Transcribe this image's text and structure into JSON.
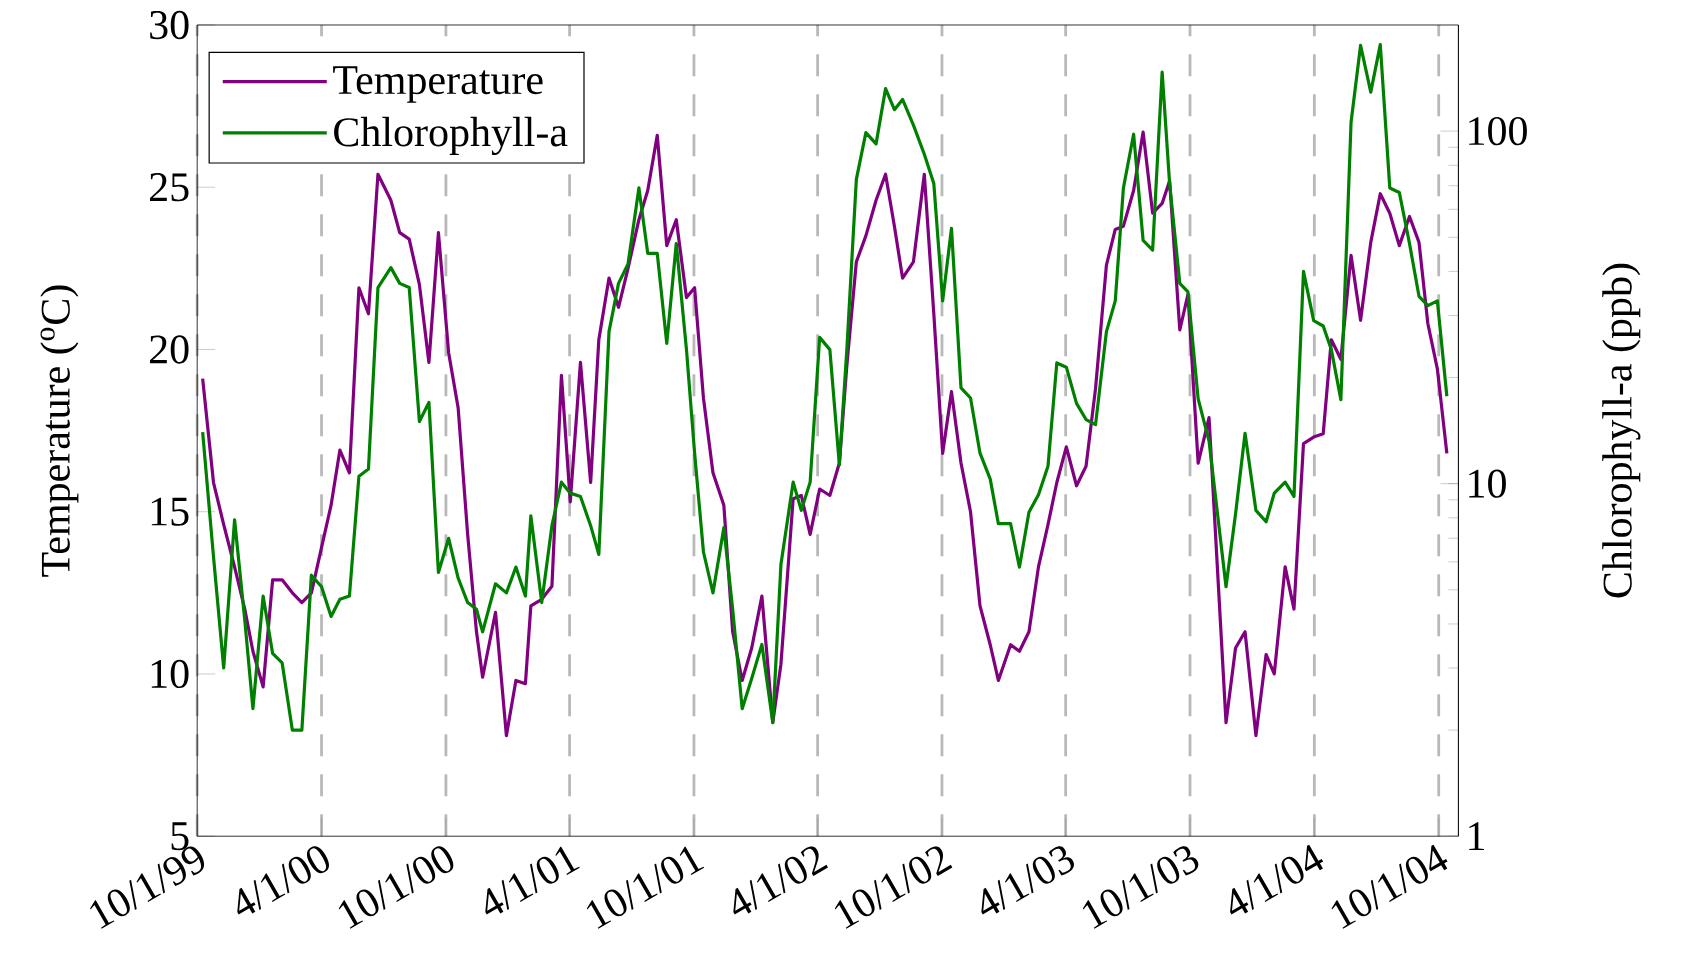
{
  "chart_data": {
    "type": "line",
    "ylabel": "Temperature ($^{o}$C)",
    "y2label": "Chlorophyll-a (ppb)",
    "x": [
      "1999-10-09",
      "1999-10-25",
      "1999-11-09",
      "1999-11-25",
      "1999-12-10",
      "1999-12-22",
      "2000-01-06",
      "2000-01-20",
      "2000-02-03",
      "2000-02-18",
      "2000-03-03",
      "2000-03-17",
      "2000-04-01",
      "2000-04-15",
      "2000-04-28",
      "2000-05-12",
      "2000-05-26",
      "2000-06-09",
      "2000-06-23",
      "2000-07-12",
      "2000-07-25",
      "2000-08-08",
      "2000-08-23",
      "2000-09-06",
      "2000-09-20",
      "2000-10-05",
      "2000-10-19",
      "2000-11-02",
      "2000-11-15",
      "2000-11-24",
      "2000-12-13",
      "2000-12-29",
      "2001-01-12",
      "2001-01-26",
      "2001-02-03",
      "2001-02-19",
      "2001-03-06",
      "2001-03-20",
      "2001-04-02",
      "2001-04-17",
      "2001-05-02",
      "2001-05-14",
      "2001-05-29",
      "2001-06-12",
      "2001-06-26",
      "2001-07-12",
      "2001-07-25",
      "2001-08-08",
      "2001-08-22",
      "2001-09-05",
      "2001-09-20",
      "2001-10-02",
      "2001-10-15",
      "2001-10-29",
      "2001-11-14",
      "2001-11-27",
      "2001-12-11",
      "2001-12-25",
      "2002-01-09",
      "2002-01-25",
      "2002-02-06",
      "2002-02-24",
      "2002-03-08",
      "2002-03-21",
      "2002-04-04",
      "2002-04-19",
      "2002-05-03",
      "2002-05-14",
      "2002-05-28",
      "2002-06-11",
      "2002-06-26",
      "2002-07-10",
      "2002-07-23",
      "2002-08-04",
      "2002-08-20",
      "2002-09-05",
      "2002-09-19",
      "2002-10-02",
      "2002-10-15",
      "2002-10-29",
      "2002-11-12",
      "2002-11-26",
      "2002-12-11",
      "2002-12-23",
      "2003-01-10",
      "2003-01-23",
      "2003-02-06",
      "2003-02-20",
      "2003-03-06",
      "2003-03-19",
      "2003-04-02",
      "2003-04-17",
      "2003-05-01",
      "2003-05-15",
      "2003-05-31",
      "2003-06-13",
      "2003-06-25",
      "2003-07-10",
      "2003-07-24",
      "2003-08-07",
      "2003-08-21",
      "2003-09-01",
      "2003-09-16",
      "2003-09-28",
      "2003-10-13",
      "2003-10-29",
      "2003-11-23",
      "2003-12-07",
      "2003-12-21",
      "2004-01-06",
      "2004-01-21",
      "2004-02-02",
      "2004-02-18",
      "2004-03-02",
      "2004-03-16",
      "2004-03-31",
      "2004-04-14",
      "2004-04-26",
      "2004-05-10",
      "2004-05-25",
      "2004-06-08",
      "2004-06-23",
      "2004-07-07",
      "2004-07-21",
      "2004-08-04",
      "2004-08-19",
      "2004-09-02",
      "2004-09-15",
      "2004-09-29",
      "2004-10-13"
    ],
    "series": [
      {
        "name": "Temperature",
        "color": "#800080",
        "values": [
          19.1,
          15.9,
          14.6,
          13.3,
          12.0,
          10.7,
          9.6,
          12.9,
          12.9,
          12.5,
          12.2,
          12.5,
          13.9,
          15.2,
          16.9,
          16.2,
          21.9,
          21.1,
          25.4,
          24.6,
          23.6,
          23.4,
          22.0,
          19.6,
          23.6,
          19.9,
          18.2,
          14.3,
          11.3,
          9.9,
          11.9,
          8.1,
          9.8,
          9.7,
          12.1,
          12.3,
          12.7,
          19.2,
          15.3,
          19.6,
          15.9,
          20.3,
          22.2,
          21.3,
          22.5,
          24.0,
          24.9,
          26.6,
          23.2,
          24.0,
          21.6,
          21.9,
          18.5,
          16.2,
          15.2,
          11.3,
          9.8,
          10.8,
          12.4,
          8.5,
          10.3,
          15.4,
          15.5,
          14.3,
          15.7,
          15.5,
          16.5,
          19.5,
          22.7,
          23.5,
          24.6,
          25.4,
          23.8,
          22.2,
          22.7,
          25.4,
          21.1,
          16.8,
          18.7,
          16.5,
          15.0,
          12.1,
          10.9,
          9.8,
          10.9,
          10.7,
          11.3,
          13.3,
          14.6,
          15.9,
          17.0,
          15.8,
          16.4,
          18.8,
          22.6,
          23.7,
          23.8,
          24.9,
          26.7,
          24.2,
          24.5,
          25.2,
          20.6,
          21.7,
          16.5,
          17.9,
          8.5,
          10.8,
          11.3,
          8.1,
          10.6,
          10.0,
          13.3,
          12.0,
          17.1,
          17.3,
          17.4,
          20.3,
          19.7,
          22.9,
          20.9,
          23.3,
          24.8,
          24.2,
          23.2,
          24.1,
          23.3,
          20.8,
          19.4,
          16.8
        ]
      },
      {
        "name": "Chlorophyll-a",
        "color": "#008000",
        "axis": "y2",
        "values": [
          14,
          6.2,
          3.0,
          7.9,
          4.1,
          2.3,
          4.8,
          3.3,
          3.1,
          2.0,
          2.0,
          5.5,
          5.1,
          4.2,
          4.7,
          4.8,
          10.5,
          11,
          36,
          41,
          37,
          36,
          15,
          17,
          5.6,
          7.0,
          5.4,
          4.6,
          4.4,
          3.8,
          5.2,
          4.9,
          5.8,
          4.8,
          8.1,
          4.6,
          7.6,
          10.1,
          9.4,
          9.2,
          7.6,
          6.3,
          27,
          37,
          42,
          69,
          45,
          45,
          25,
          48,
          24,
          12.2,
          6.4,
          4.9,
          7.5,
          4.4,
          2.3,
          2.8,
          3.5,
          2.1,
          5.9,
          10.1,
          8.4,
          10.1,
          26,
          24,
          11.3,
          24,
          73,
          99,
          92,
          132,
          115,
          123,
          104,
          86,
          71,
          33,
          53,
          18.7,
          17.5,
          12.2,
          10.3,
          7.7,
          7.7,
          5.8,
          8.3,
          9.3,
          11.2,
          22,
          21.4,
          16.9,
          15.2,
          14.7,
          27,
          33,
          69,
          98,
          49,
          46,
          147,
          71,
          37,
          35,
          17.4,
          13.2,
          5.1,
          8.2,
          13.9,
          8.4,
          7.8,
          9.4,
          10.1,
          9.2,
          40,
          29,
          28,
          24,
          17.3,
          106,
          175,
          129,
          176,
          69,
          67,
          48,
          34,
          32,
          33,
          17.7
        ]
      }
    ],
    "xlim": [
      "1999-10-01",
      "2004-10-30"
    ],
    "xticks": [
      {
        "value": "1999-10-01",
        "label": "10/1/99"
      },
      {
        "value": "2000-04-01",
        "label": "4/1/00"
      },
      {
        "value": "2000-10-01",
        "label": "10/1/00"
      },
      {
        "value": "2001-04-01",
        "label": "4/1/01"
      },
      {
        "value": "2001-10-01",
        "label": "10/1/01"
      },
      {
        "value": "2002-04-01",
        "label": "4/1/02"
      },
      {
        "value": "2002-10-01",
        "label": "10/1/02"
      },
      {
        "value": "2003-04-01",
        "label": "4/1/03"
      },
      {
        "value": "2003-10-01",
        "label": "10/1/03"
      },
      {
        "value": "2004-04-01",
        "label": "4/1/04"
      },
      {
        "value": "2004-10-01",
        "label": "10/1/04"
      }
    ],
    "ylim": [
      5,
      30
    ],
    "yticks": [
      5,
      10,
      15,
      20,
      25,
      30
    ],
    "y2lim": [
      1,
      200
    ],
    "y2ticks": [
      1,
      10,
      100
    ],
    "log": "y2",
    "grid": "x",
    "legend": "top left",
    "line_style": "solid"
  }
}
